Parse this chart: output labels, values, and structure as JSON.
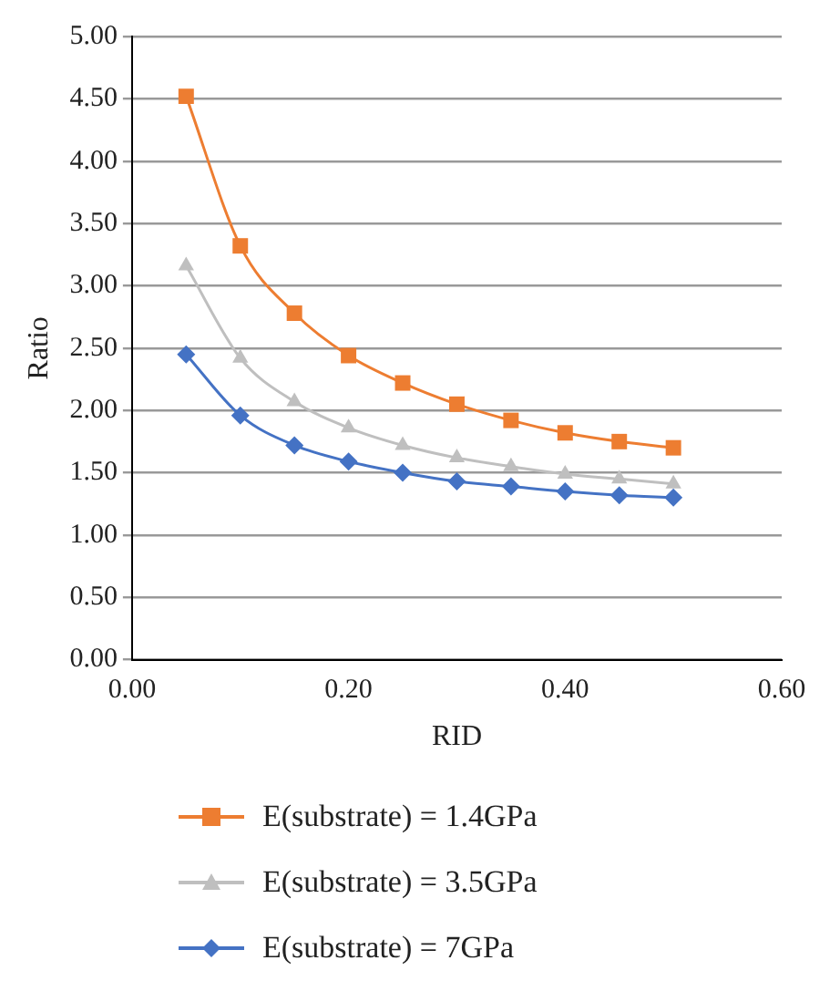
{
  "chart_data": {
    "type": "line",
    "xlabel": "RID",
    "ylabel": "Ratio",
    "xlim": [
      0,
      0.6
    ],
    "xticks": [
      {
        "value": 0,
        "label": "0.00"
      },
      {
        "value": 0.2,
        "label": "0.20"
      },
      {
        "value": 0.4,
        "label": "0.40"
      },
      {
        "value": 0.6,
        "label": "0.60"
      }
    ],
    "ylim": [
      0,
      5
    ],
    "yticks": [
      {
        "value": 0,
        "label": "0.00"
      },
      {
        "value": 0.5,
        "label": "0.50"
      },
      {
        "value": 1,
        "label": "1.00"
      },
      {
        "value": 1.5,
        "label": "1.50"
      },
      {
        "value": 2,
        "label": "2.00"
      },
      {
        "value": 2.5,
        "label": "2.50"
      },
      {
        "value": 3,
        "label": "3.00"
      },
      {
        "value": 3.5,
        "label": "3.50"
      },
      {
        "value": 4,
        "label": "4.00"
      },
      {
        "value": 4.5,
        "label": "4.50"
      },
      {
        "value": 5,
        "label": "5.00"
      }
    ],
    "x": [
      0.05,
      0.1,
      0.15,
      0.2,
      0.25,
      0.3,
      0.35,
      0.4,
      0.45,
      0.5
    ],
    "grid": "y",
    "legend": "bottom",
    "line_style": "solid",
    "series": [
      {
        "name": "E(substrate) = 1.4GPa",
        "color": "#ed7d31",
        "marker": "square",
        "values": [
          4.52,
          3.32,
          2.78,
          2.44,
          2.22,
          2.05,
          1.92,
          1.82,
          1.75,
          1.7
        ]
      },
      {
        "name": "E(substrate) = 3.5GPa",
        "color": "#bfbfbf",
        "marker": "triangle",
        "values": [
          3.16,
          2.42,
          2.07,
          1.86,
          1.72,
          1.62,
          1.55,
          1.49,
          1.45,
          1.41
        ]
      },
      {
        "name": "E(substrate) = 7GPa",
        "color": "#4472c4",
        "marker": "diamond",
        "values": [
          2.45,
          1.96,
          1.72,
          1.59,
          1.5,
          1.43,
          1.39,
          1.35,
          1.32,
          1.3
        ]
      }
    ]
  }
}
